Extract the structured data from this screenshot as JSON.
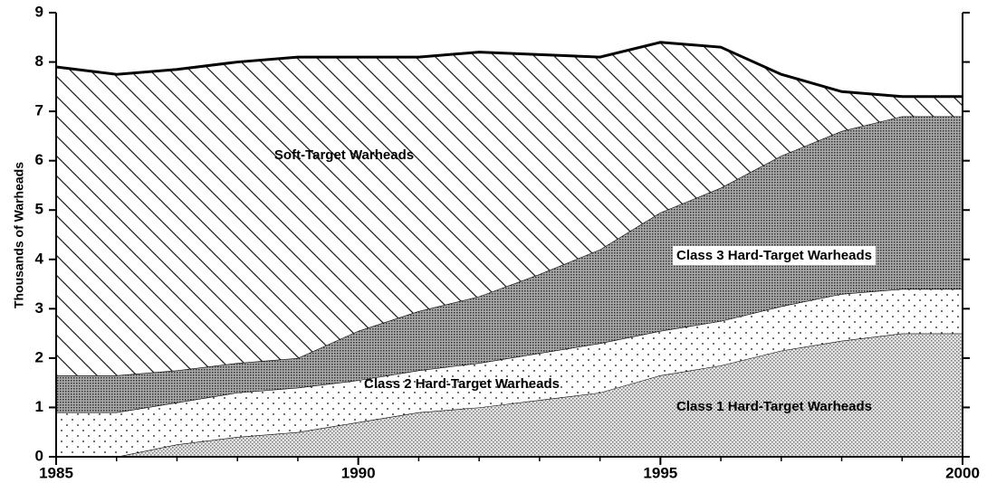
{
  "chart_data": {
    "type": "stacked_area",
    "ylabel": "Thousands of Warheads",
    "x": [
      1985,
      1986,
      1987,
      1988,
      1989,
      1990,
      1991,
      1992,
      1993,
      1994,
      1995,
      1996,
      1997,
      1998,
      1999,
      2000
    ],
    "series": [
      {
        "name": "Class 1 Hard-Target Warheads",
        "values": [
          0,
          0,
          0.25,
          0.4,
          0.5,
          0.7,
          0.9,
          1.0,
          1.15,
          1.3,
          1.65,
          1.85,
          2.15,
          2.35,
          2.5,
          2.5
        ]
      },
      {
        "name": "Class 2 Hard-Target Warheads",
        "values": [
          0.9,
          0.9,
          0.85,
          0.9,
          0.9,
          0.85,
          0.85,
          0.9,
          0.95,
          1.0,
          0.9,
          0.9,
          0.9,
          0.95,
          0.9,
          0.9
        ]
      },
      {
        "name": "Class 3 Hard-Target Warheads",
        "values": [
          0.75,
          0.75,
          0.65,
          0.6,
          0.6,
          1.0,
          1.2,
          1.35,
          1.6,
          1.9,
          2.4,
          2.7,
          3.05,
          3.3,
          3.5,
          3.5
        ]
      },
      {
        "name": "Soft-Target Warheads",
        "values": [
          6.25,
          6.1,
          6.1,
          6.1,
          6.1,
          5.55,
          5.15,
          4.95,
          4.45,
          3.9,
          3.45,
          2.85,
          1.65,
          0.8,
          0.4,
          0.4
        ]
      }
    ],
    "xlim": [
      1985,
      2000
    ],
    "xticks": [
      1985,
      1990,
      1995,
      2000
    ],
    "ylim": [
      0,
      9
    ],
    "yticks": [
      0,
      1,
      2,
      3,
      4,
      5,
      6,
      7,
      8,
      9
    ]
  }
}
